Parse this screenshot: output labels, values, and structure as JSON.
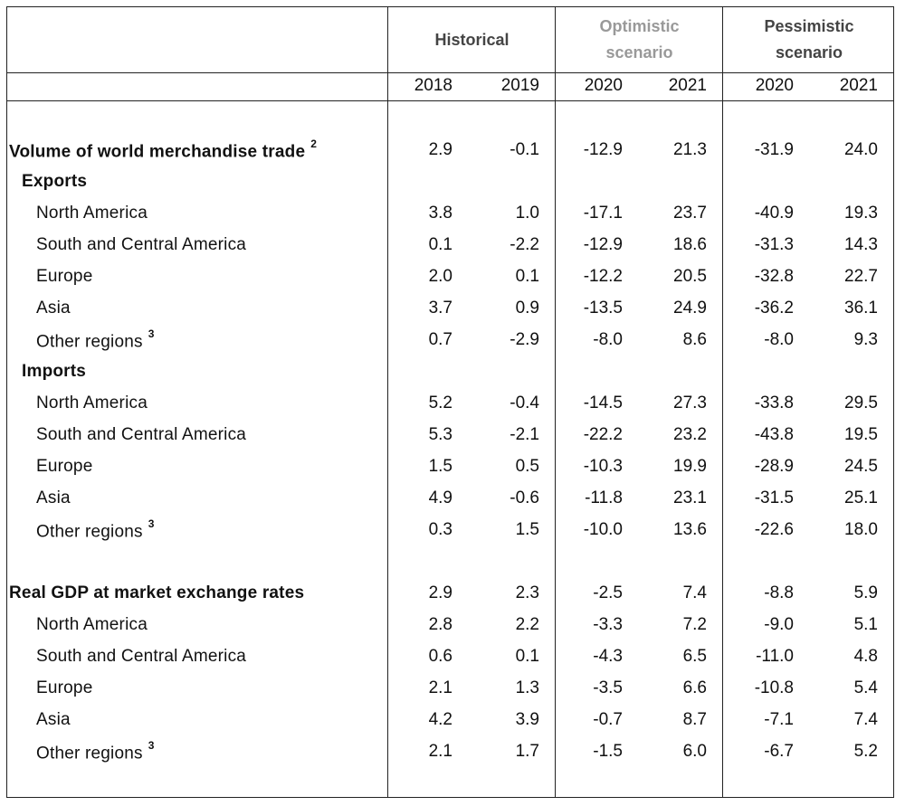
{
  "header": {
    "groups": [
      {
        "label_line1": "Historical",
        "label_line2": "",
        "muted": false
      },
      {
        "label_line1": "Optimistic",
        "label_line2": "scenario",
        "muted": true
      },
      {
        "label_line1": "Pessimistic",
        "label_line2": "scenario",
        "muted": false
      }
    ],
    "years": [
      "2018",
      "2019",
      "2020",
      "2021",
      "2020",
      "2021"
    ]
  },
  "rows": [
    {
      "label": "Volume of world merchandise trade",
      "note": "2",
      "level": 0,
      "values": [
        "2.9",
        "-0.1",
        "-12.9",
        "21.3",
        "-31.9",
        "24.0"
      ]
    },
    {
      "label": "Exports",
      "note": "",
      "level": 1,
      "values": []
    },
    {
      "label": "North America",
      "note": "",
      "level": 2,
      "values": [
        "3.8",
        "1.0",
        "-17.1",
        "23.7",
        "-40.9",
        "19.3"
      ]
    },
    {
      "label": "South and Central America",
      "note": "",
      "level": 2,
      "values": [
        "0.1",
        "-2.2",
        "-12.9",
        "18.6",
        "-31.3",
        "14.3"
      ]
    },
    {
      "label": "Europe",
      "note": "",
      "level": 2,
      "values": [
        "2.0",
        "0.1",
        "-12.2",
        "20.5",
        "-32.8",
        "22.7"
      ]
    },
    {
      "label": "Asia",
      "note": "",
      "level": 2,
      "values": [
        "3.7",
        "0.9",
        "-13.5",
        "24.9",
        "-36.2",
        "36.1"
      ]
    },
    {
      "label": "Other regions",
      "note": "3",
      "level": 2,
      "values": [
        "0.7",
        "-2.9",
        "-8.0",
        "8.6",
        "-8.0",
        "9.3"
      ]
    },
    {
      "label": "Imports",
      "note": "",
      "level": 1,
      "values": []
    },
    {
      "label": "North America",
      "note": "",
      "level": 2,
      "values": [
        "5.2",
        "-0.4",
        "-14.5",
        "27.3",
        "-33.8",
        "29.5"
      ]
    },
    {
      "label": "South and Central America",
      "note": "",
      "level": 2,
      "values": [
        "5.3",
        "-2.1",
        "-22.2",
        "23.2",
        "-43.8",
        "19.5"
      ]
    },
    {
      "label": "Europe",
      "note": "",
      "level": 2,
      "values": [
        "1.5",
        "0.5",
        "-10.3",
        "19.9",
        "-28.9",
        "24.5"
      ]
    },
    {
      "label": "Asia",
      "note": "",
      "level": 2,
      "values": [
        "4.9",
        "-0.6",
        "-11.8",
        "23.1",
        "-31.5",
        "25.1"
      ]
    },
    {
      "label": "Other regions",
      "note": "3",
      "level": 2,
      "values": [
        "0.3",
        "1.5",
        "-10.0",
        "13.6",
        "-22.6",
        "18.0"
      ]
    },
    {
      "label": "Real GDP at market exchange rates",
      "note": "",
      "level": 0,
      "values": [
        "2.9",
        "2.3",
        "-2.5",
        "7.4",
        "-8.8",
        "5.9"
      ]
    },
    {
      "label": "North America",
      "note": "",
      "level": 2,
      "values": [
        "2.8",
        "2.2",
        "-3.3",
        "7.2",
        "-9.0",
        "5.1"
      ]
    },
    {
      "label": "South and Central America",
      "note": "",
      "level": 2,
      "values": [
        "0.6",
        "0.1",
        "-4.3",
        "6.5",
        "-11.0",
        "4.8"
      ]
    },
    {
      "label": "Europe",
      "note": "",
      "level": 2,
      "values": [
        "2.1",
        "1.3",
        "-3.5",
        "6.6",
        "-10.8",
        "5.4"
      ]
    },
    {
      "label": "Asia",
      "note": "",
      "level": 2,
      "values": [
        "4.2",
        "3.9",
        "-0.7",
        "8.7",
        "-7.1",
        "7.4"
      ]
    },
    {
      "label": "Other regions",
      "note": "3",
      "level": 2,
      "values": [
        "2.1",
        "1.7",
        "-1.5",
        "6.0",
        "-6.7",
        "5.2"
      ]
    }
  ]
}
